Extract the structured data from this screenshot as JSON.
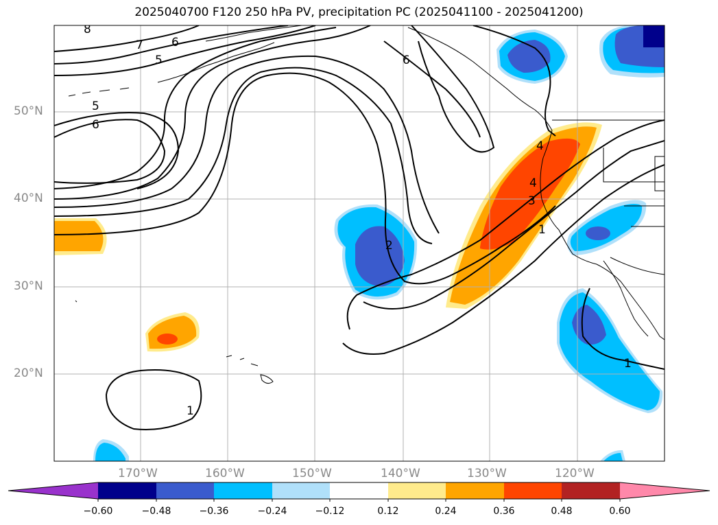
{
  "title": "2025040700 F120 250 hPa PV, precipitation PC (2025041100 - 2025041200)",
  "map": {
    "lat_labels": [
      "50°N",
      "40°N",
      "30°N",
      "20°N"
    ],
    "lon_labels": [
      "170°W",
      "160°W",
      "150°W",
      "140°W",
      "130°W",
      "120°W"
    ],
    "pv_contour_labels": [
      "8",
      "7",
      "6",
      "5",
      "5",
      "6",
      "6",
      "2",
      "4",
      "3",
      "1",
      "4",
      "1",
      "1"
    ]
  },
  "colorbar": {
    "ticks": [
      "−0.60",
      "−0.48",
      "−0.36",
      "−0.24",
      "−0.12",
      "0.12",
      "0.24",
      "0.36",
      "0.48",
      "0.60"
    ],
    "colors": [
      "#9932cc",
      "#00008b",
      "#3a5bcd",
      "#00bfff",
      "#b0e0fa",
      "#ffffff",
      "#ffeb8c",
      "#ffa500",
      "#ff4500",
      "#b22222",
      "#ff88aa"
    ]
  }
}
